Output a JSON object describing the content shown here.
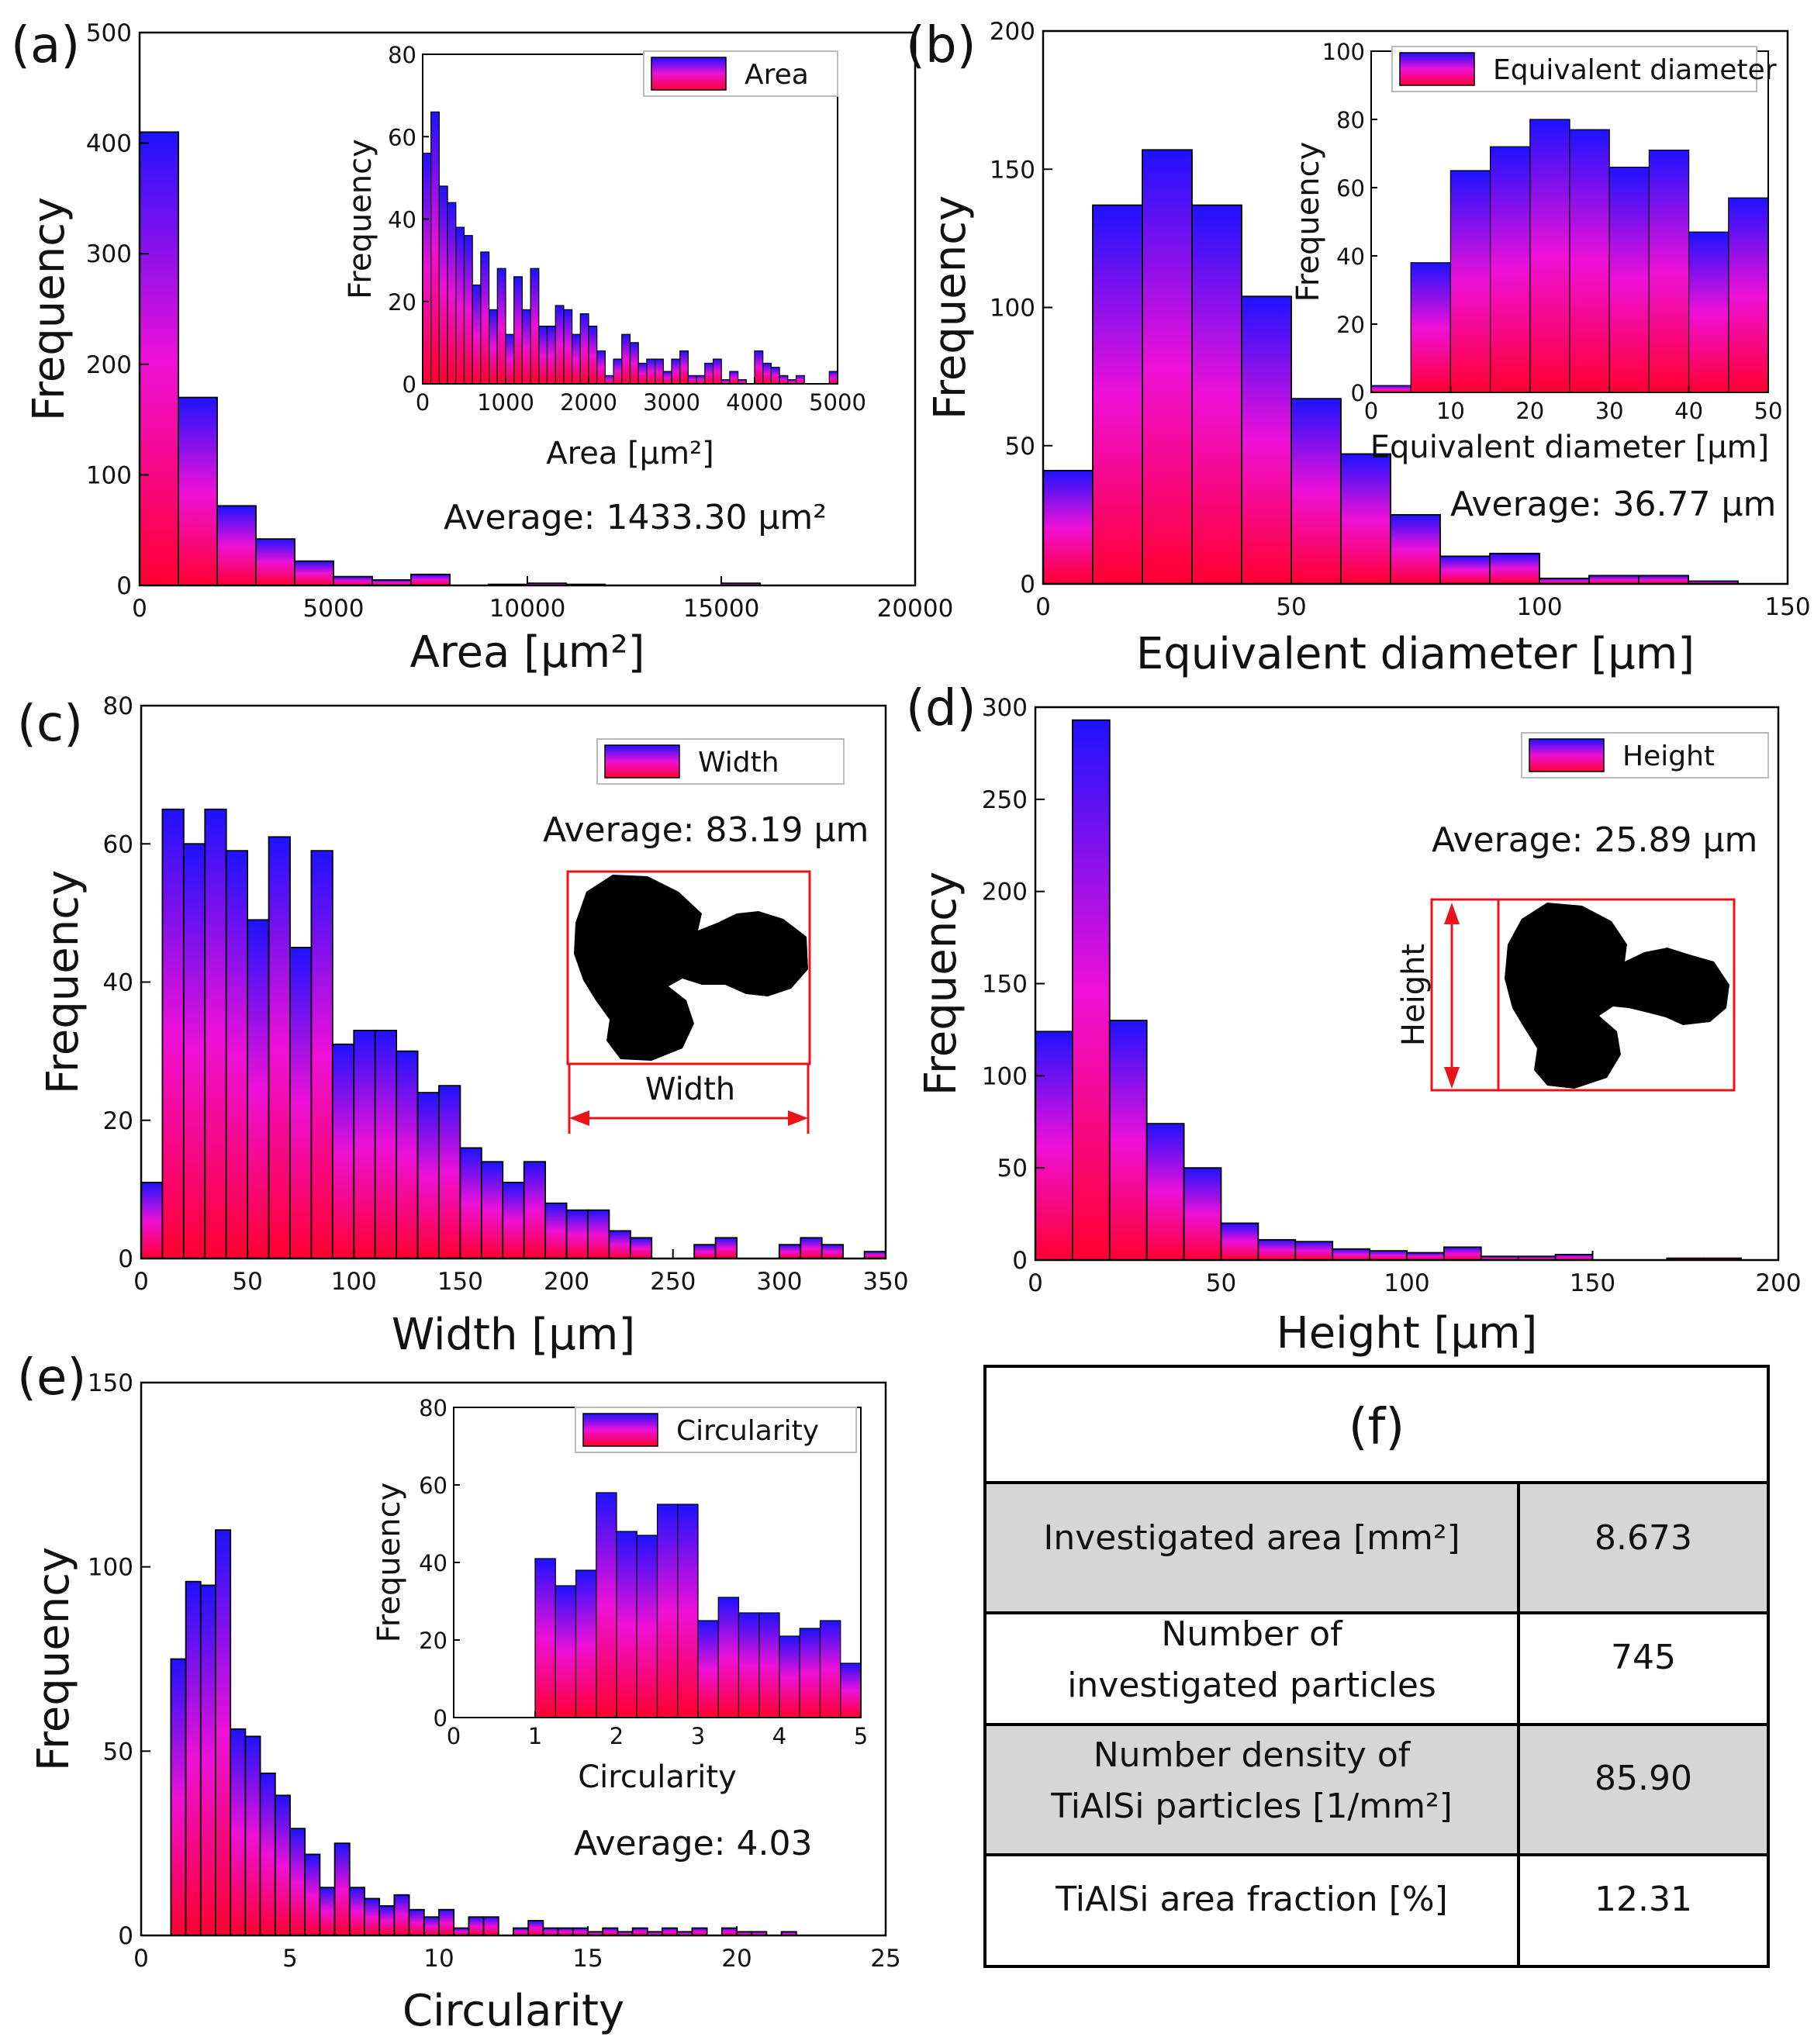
{
  "figure": {
    "panels": [
      "(a)",
      "(b)",
      "(c)",
      "(d)",
      "(e)",
      "(f)"
    ]
  },
  "colors": {
    "top": "#1e12ff",
    "mid": "#ee10d8",
    "bottom": "#ff0030",
    "edge": "#000000",
    "annot": "#e8141c"
  },
  "chart_data": [
    {
      "id": "a",
      "type": "bar",
      "title": "(a)",
      "xlabel": "Area [μm²]",
      "ylabel": "Frequency",
      "xlim": [
        0,
        20000
      ],
      "ylim": [
        0,
        500
      ],
      "xticks": [
        0,
        5000,
        10000,
        15000,
        20000
      ],
      "yticks": [
        0,
        100,
        200,
        300,
        400,
        500
      ],
      "xtick_labels": [
        "0",
        "5000",
        "10000",
        "15000",
        "20000"
      ],
      "ytick_labels": [
        "0",
        "100",
        "200",
        "300",
        "400",
        "500"
      ],
      "bin_start": 0,
      "bin_width": 1000,
      "values": [
        410,
        170,
        72,
        42,
        22,
        8,
        5,
        10,
        0,
        1,
        2,
        1,
        0,
        0,
        0,
        2,
        0,
        0,
        0,
        0
      ],
      "legend": "Area",
      "average": "Average: 1433.30 μm²",
      "inset": {
        "xlabel": "Area [μm²]",
        "ylabel": "Frequency",
        "xlim": [
          0,
          5000
        ],
        "ylim": [
          0,
          80
        ],
        "xticks": [
          0,
          1000,
          2000,
          3000,
          4000,
          5000
        ],
        "yticks": [
          0,
          20,
          40,
          60,
          80
        ],
        "xtick_labels": [
          "0",
          "1000",
          "2000",
          "3000",
          "4000",
          "5000"
        ],
        "ytick_labels": [
          "0",
          "20",
          "40",
          "60",
          "80"
        ],
        "bin_start": 0,
        "bin_width": 100,
        "values": [
          56,
          66,
          48,
          44,
          38,
          36,
          24,
          32,
          18,
          28,
          12,
          26,
          18,
          28,
          14,
          14,
          19,
          18,
          12,
          17,
          14,
          8,
          2,
          6,
          12,
          10,
          5,
          6,
          6,
          3,
          6,
          8,
          2,
          2,
          5,
          6,
          1,
          3,
          1,
          0,
          8,
          5,
          4,
          2,
          1,
          2,
          0,
          0,
          0,
          3
        ]
      }
    },
    {
      "id": "b",
      "type": "bar",
      "title": "(b)",
      "xlabel": "Equivalent diameter [μm]",
      "ylabel": "Frequency",
      "xlim": [
        0,
        150
      ],
      "ylim": [
        0,
        200
      ],
      "xticks": [
        0,
        50,
        100,
        150
      ],
      "yticks": [
        0,
        50,
        100,
        150,
        200
      ],
      "xtick_labels": [
        "0",
        "50",
        "100",
        "150"
      ],
      "ytick_labels": [
        "0",
        "50",
        "100",
        "150",
        "200"
      ],
      "bin_start": 0,
      "bin_width": 10,
      "values": [
        41,
        137,
        157,
        137,
        104,
        67,
        47,
        25,
        10,
        11,
        2,
        3,
        3,
        1
      ],
      "legend": "Equivalent diameter",
      "average": "Average: 36.77 μm",
      "inset": {
        "xlabel": "Equivalent diameter [μm]",
        "ylabel": "Frequency",
        "xlim": [
          0,
          50
        ],
        "ylim": [
          0,
          100
        ],
        "xticks": [
          0,
          10,
          20,
          30,
          40,
          50
        ],
        "yticks": [
          0,
          20,
          40,
          60,
          80,
          100
        ],
        "xtick_labels": [
          "0",
          "10",
          "20",
          "30",
          "40",
          "50"
        ],
        "ytick_labels": [
          "0",
          "20",
          "40",
          "60",
          "80",
          "100"
        ],
        "bin_start": 0,
        "bin_width": 5,
        "values": [
          2,
          38,
          65,
          72,
          80,
          77,
          66,
          71,
          47,
          57
        ]
      }
    },
    {
      "id": "c",
      "type": "bar",
      "title": "(c)",
      "xlabel": "Width [μm]",
      "ylabel": "Frequency",
      "xlim": [
        0,
        350
      ],
      "ylim": [
        0,
        80
      ],
      "xticks": [
        0,
        50,
        100,
        150,
        200,
        250,
        300,
        350
      ],
      "yticks": [
        0,
        20,
        40,
        60,
        80
      ],
      "xtick_labels": [
        "0",
        "50",
        "100",
        "150",
        "200",
        "250",
        "300",
        "350"
      ],
      "ytick_labels": [
        "0",
        "20",
        "40",
        "60",
        "80"
      ],
      "bin_start": 0,
      "bin_width": 10,
      "values": [
        11,
        65,
        60,
        65,
        59,
        49,
        61,
        45,
        59,
        31,
        33,
        33,
        30,
        24,
        25,
        16,
        14,
        11,
        14,
        8,
        7,
        7,
        4,
        3,
        0,
        0,
        2,
        3,
        0,
        0,
        2,
        3,
        2,
        0,
        1
      ],
      "legend": "Width",
      "average": "Average: 83.19 μm",
      "annotation": "Width"
    },
    {
      "id": "d",
      "type": "bar",
      "title": "(d)",
      "xlabel": "Height [μm]",
      "ylabel": "Frequency",
      "xlim": [
        0,
        200
      ],
      "ylim": [
        0,
        300
      ],
      "xticks": [
        0,
        50,
        100,
        150,
        200
      ],
      "yticks": [
        0,
        50,
        100,
        150,
        200,
        250,
        300
      ],
      "xtick_labels": [
        "0",
        "50",
        "100",
        "150",
        "200"
      ],
      "ytick_labels": [
        "0",
        "50",
        "100",
        "150",
        "200",
        "250",
        "300"
      ],
      "bin_start": 0,
      "bin_width": 10,
      "values": [
        124,
        293,
        130,
        74,
        50,
        20,
        11,
        10,
        6,
        5,
        4,
        7,
        2,
        2,
        3,
        0,
        0,
        1,
        1,
        0
      ],
      "legend": "Height",
      "average": "Average: 25.89 μm",
      "annotation": "Height"
    },
    {
      "id": "e",
      "type": "bar",
      "title": "(e)",
      "xlabel": "Circularity",
      "ylabel": "Frequency",
      "xlim": [
        0,
        25
      ],
      "ylim": [
        0,
        150
      ],
      "xticks": [
        0,
        5,
        10,
        15,
        20,
        25
      ],
      "yticks": [
        0,
        50,
        100,
        150
      ],
      "xtick_labels": [
        "0",
        "5",
        "10",
        "15",
        "20",
        "25"
      ],
      "ytick_labels": [
        "0",
        "50",
        "100",
        "150"
      ],
      "bin_start": 1,
      "bin_width": 0.5,
      "values": [
        75,
        96,
        95,
        110,
        56,
        54,
        44,
        38,
        29,
        22,
        13,
        25,
        13,
        10,
        8,
        11,
        7,
        5,
        7,
        2,
        5,
        5,
        0,
        2,
        4,
        2,
        2,
        2,
        1,
        2,
        1,
        2,
        1,
        2,
        1,
        2,
        0,
        2,
        1,
        1,
        0,
        1
      ],
      "legend": "Circularity",
      "average": "Average: 4.03",
      "inset": {
        "xlabel": "Circularity",
        "ylabel": "Frequency",
        "xlim": [
          0,
          5
        ],
        "ylim": [
          0,
          80
        ],
        "xticks": [
          0,
          1,
          2,
          3,
          4,
          5
        ],
        "yticks": [
          0,
          20,
          40,
          60,
          80
        ],
        "xtick_labels": [
          "0",
          "1",
          "2",
          "3",
          "4",
          "5"
        ],
        "ytick_labels": [
          "0",
          "20",
          "40",
          "60",
          "80"
        ],
        "bin_start": 1,
        "bin_width": 0.25,
        "values": [
          41,
          34,
          38,
          58,
          48,
          47,
          55,
          55,
          25,
          31,
          27,
          27,
          21,
          23,
          25,
          14
        ]
      }
    }
  ],
  "table": {
    "title": "(f)",
    "rows": [
      {
        "label": "Investigated area [mm²]",
        "value": "8.673"
      },
      {
        "label": "Number of investigated particles",
        "value": "745"
      },
      {
        "label": "Number density of TiAlSi particles [1/mm²]",
        "value": "85.90"
      },
      {
        "label": "TiAlSi area fraction [%]",
        "value": "12.31"
      }
    ]
  }
}
